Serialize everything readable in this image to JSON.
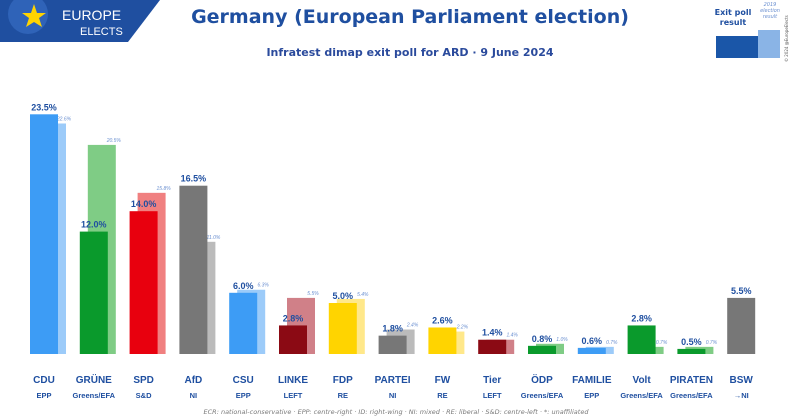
{
  "header": {
    "logo_line1": "EUROPE",
    "logo_line2": "ELECTS",
    "title": "Germany (European Parliament election)",
    "subtitle": "Infratest dimap exit poll for ARD · 9 June 2024"
  },
  "legend": {
    "current_label_line1": "Exit poll",
    "current_label_line2": "result",
    "previous_label_line1": "2019",
    "previous_label_line2": "election",
    "previous_label_line3": "result",
    "copyright": "© 2024 @EuropeElects",
    "current_color": "#1a56a8",
    "previous_color": "#8ab4e6"
  },
  "footer": "ECR: national-conservative · EPP: centre-right · ID: right-wing · NI: mixed · RE: liberal · S&D: centre-left · *: unaffiliated",
  "chart_data": {
    "type": "bar",
    "title": "Germany (European Parliament election)",
    "subtitle": "Infratest dimap exit poll for ARD · 9 June 2024",
    "ylim": [
      0,
      25
    ],
    "series": [
      {
        "name": "Exit poll result",
        "values": [
          23.5,
          12.0,
          14.0,
          16.5,
          6.0,
          2.8,
          5.0,
          1.8,
          2.6,
          1.4,
          0.8,
          0.6,
          2.8,
          0.5,
          5.5
        ]
      },
      {
        "name": "2019 election result",
        "values": [
          22.6,
          20.5,
          15.8,
          11.0,
          6.3,
          5.5,
          5.4,
          2.4,
          2.2,
          1.4,
          1.0,
          0.7,
          0.7,
          0.7,
          null
        ]
      }
    ],
    "parties": [
      {
        "name": "CDU",
        "group": "EPP",
        "current": 23.5,
        "current_label": "23.5%",
        "previous": 22.6,
        "previous_label": "22.6%",
        "color": "#3d9cf5",
        "prev_color": "#9ccbf9"
      },
      {
        "name": "GRÜNE",
        "group": "Greens/EFA",
        "current": 12.0,
        "current_label": "12.0%",
        "previous": 20.5,
        "previous_label": "20.5%",
        "color": "#0a9a2c",
        "prev_color": "#7fcc85"
      },
      {
        "name": "SPD",
        "group": "S&D",
        "current": 14.0,
        "current_label": "14.0%",
        "previous": 15.8,
        "previous_label": "15.8%",
        "color": "#e8000e",
        "prev_color": "#f08080"
      },
      {
        "name": "AfD",
        "group": "NI",
        "current": 16.5,
        "current_label": "16.5%",
        "previous": 11.0,
        "previous_label": "11.0%",
        "color": "#777777",
        "prev_color": "#bbbbbb"
      },
      {
        "name": "CSU",
        "group": "EPP",
        "current": 6.0,
        "current_label": "6.0%",
        "previous": 6.3,
        "previous_label": "6.3%",
        "color": "#3d9cf5",
        "prev_color": "#9ccbf9"
      },
      {
        "name": "LINKE",
        "group": "LEFT",
        "current": 2.8,
        "current_label": "2.8%",
        "previous": 5.5,
        "previous_label": "5.5%",
        "color": "#8b0a14",
        "prev_color": "#d08088"
      },
      {
        "name": "FDP",
        "group": "RE",
        "current": 5.0,
        "current_label": "5.0%",
        "previous": 5.4,
        "previous_label": "5.4%",
        "color": "#ffd400",
        "prev_color": "#ffe88a"
      },
      {
        "name": "PARTEI",
        "group": "NI",
        "current": 1.8,
        "current_label": "1.8%",
        "previous": 2.4,
        "previous_label": "2.4%",
        "color": "#777777",
        "prev_color": "#bbbbbb"
      },
      {
        "name": "FW",
        "group": "RE",
        "current": 2.6,
        "current_label": "2.6%",
        "previous": 2.2,
        "previous_label": "2.2%",
        "color": "#ffd400",
        "prev_color": "#ffe88a"
      },
      {
        "name": "Tier",
        "group": "LEFT",
        "current": 1.4,
        "current_label": "1.4%",
        "previous": 1.4,
        "previous_label": "1.4%",
        "color": "#8b0a14",
        "prev_color": "#d08088"
      },
      {
        "name": "ÖDP",
        "group": "Greens/EFA",
        "current": 0.8,
        "current_label": "0.8%",
        "previous": 1.0,
        "previous_label": "1.0%",
        "color": "#0a9a2c",
        "prev_color": "#7fcc85"
      },
      {
        "name": "FAMILIE",
        "group": "EPP",
        "current": 0.6,
        "current_label": "0.6%",
        "previous": 0.7,
        "previous_label": "0.7%",
        "color": "#3d9cf5",
        "prev_color": "#9ccbf9"
      },
      {
        "name": "Volt",
        "group": "Greens/EFA",
        "current": 2.8,
        "current_label": "2.8%",
        "previous": 0.7,
        "previous_label": "0.7%",
        "color": "#0a9a2c",
        "prev_color": "#7fcc85"
      },
      {
        "name": "PIRATEN",
        "group": "Greens/EFA",
        "current": 0.5,
        "current_label": "0.5%",
        "previous": 0.7,
        "previous_label": "0.7%",
        "color": "#0a9a2c",
        "prev_color": "#7fcc85"
      },
      {
        "name": "BSW",
        "group": "→NI",
        "current": 5.5,
        "current_label": "5.5%",
        "previous": null,
        "previous_label": "",
        "color": "#777777",
        "prev_color": "#bbbbbb"
      }
    ]
  }
}
